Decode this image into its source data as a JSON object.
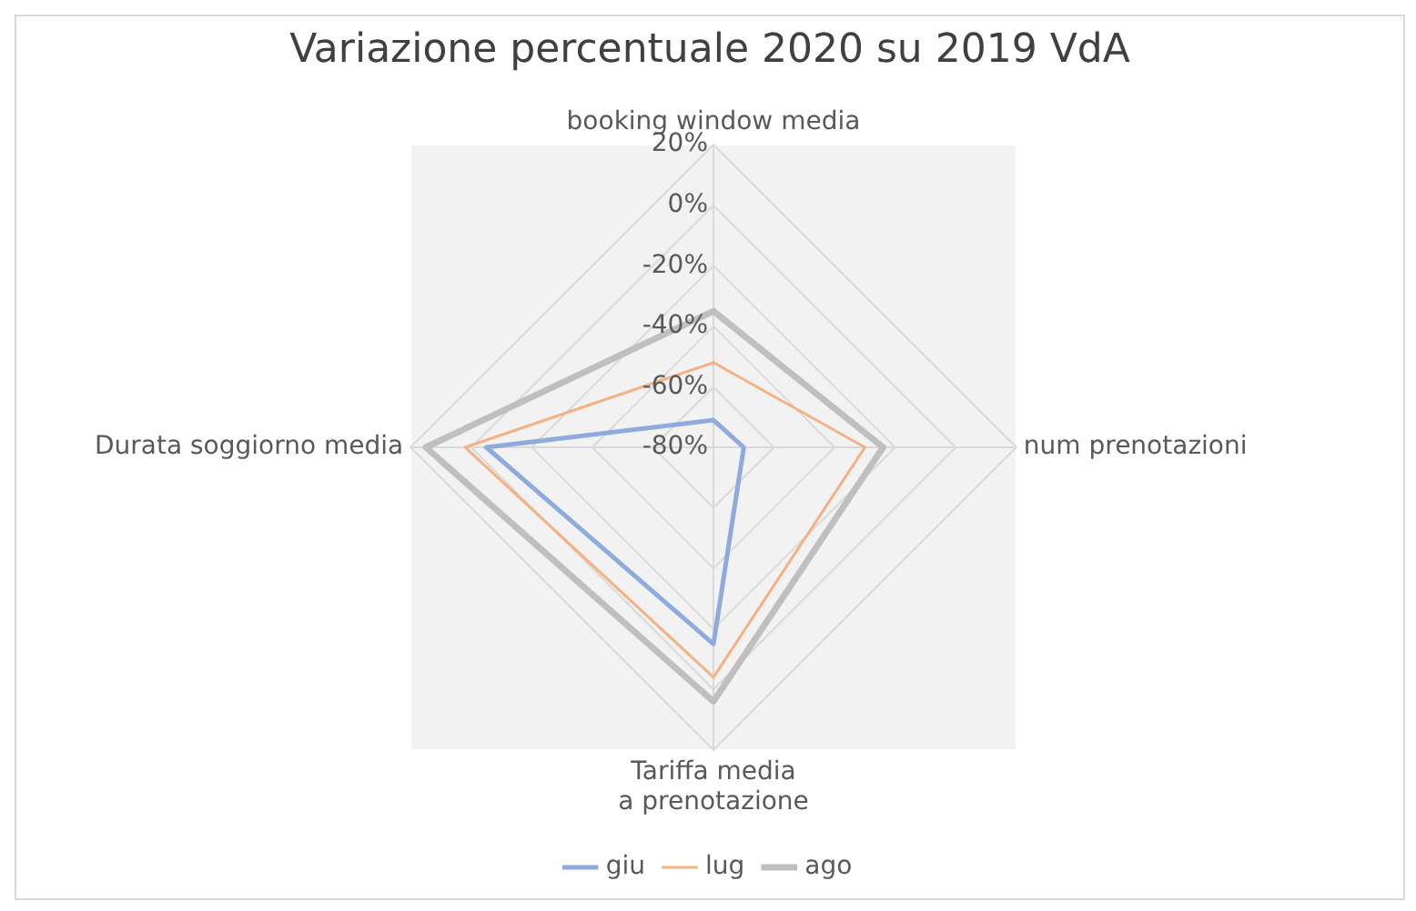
{
  "chart_data": {
    "type": "radar",
    "title": "Variazione percentuale 2020 su 2019 VdA",
    "categories": [
      "booking window media",
      "num prenotazioni",
      "Tariffa media a prenotazione",
      "Durata soggiorno media"
    ],
    "series": [
      {
        "name": "giu",
        "color": "#8faadc",
        "values": [
          -71,
          -70,
          -15,
          -5
        ]
      },
      {
        "name": "lug",
        "color": "#f4b183",
        "values": [
          -52,
          -30,
          -4,
          2
        ]
      },
      {
        "name": "ago",
        "color": "#bfbfbf",
        "values": [
          -35,
          -24,
          4,
          15
        ]
      }
    ],
    "ylim": [
      -80,
      20
    ],
    "yticks": [
      {
        "value": -80,
        "label": "-80%"
      },
      {
        "value": -60,
        "label": "-60%"
      },
      {
        "value": -40,
        "label": "-40%"
      },
      {
        "value": -20,
        "label": "-20%"
      },
      {
        "value": 0,
        "label": "0%"
      },
      {
        "value": 20,
        "label": "20%"
      }
    ],
    "grid": true,
    "legend": "bottom",
    "marker": "none"
  }
}
